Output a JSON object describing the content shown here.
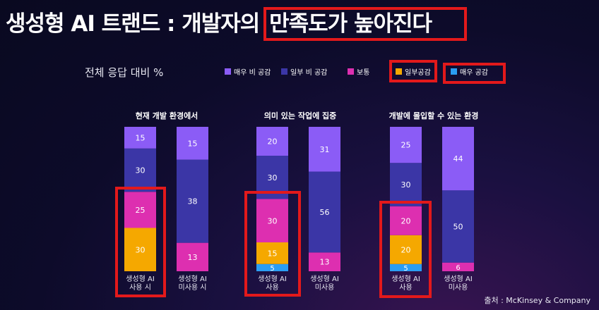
{
  "page": {
    "title_main": "생성형 AI 트랜드 : 개발자의 ",
    "title_highlight": "만족도가 높아진다",
    "axis_note": "전체 응답 대비 %",
    "source": "출처 : McKinsey & Company"
  },
  "colors": {
    "very_disagree": "#8b5cf6",
    "somewhat_disagree": "#3b36a6",
    "neutral": "#dd2fb0",
    "somewhat_agree": "#f5a800",
    "very_agree": "#2a9df4",
    "highlight": "#e3191b"
  },
  "legend": [
    {
      "key": "very_disagree",
      "label": "매우 비 공감"
    },
    {
      "key": "somewhat_disagree",
      "label": "일부 비 공감"
    },
    {
      "key": "neutral",
      "label": "보통"
    },
    {
      "key": "somewhat_agree",
      "label": "일부공감"
    },
    {
      "key": "very_agree",
      "label": "매우 공감"
    }
  ],
  "chart_data": [
    {
      "type": "bar",
      "stacked": true,
      "title": "현재 개발 환경에서",
      "categories": [
        "생성형 AI\n사용 시",
        "생성형 AI\n미사용 시"
      ],
      "series": [
        {
          "name": "매우 공감",
          "values": [
            0,
            0
          ]
        },
        {
          "name": "일부공감",
          "values": [
            30,
            0
          ]
        },
        {
          "name": "보통",
          "values": [
            25,
            13
          ]
        },
        {
          "name": "일부 비 공감",
          "values": [
            30,
            38
          ]
        },
        {
          "name": "매우 비 공감",
          "values": [
            15,
            15
          ]
        }
      ]
    },
    {
      "type": "bar",
      "stacked": true,
      "title": "의미 있는 작업에 집중",
      "categories": [
        "생성형 AI\n사용",
        "생성형 AI\n미사용"
      ],
      "series": [
        {
          "name": "매우 공감",
          "values": [
            5,
            0
          ]
        },
        {
          "name": "일부공감",
          "values": [
            15,
            0
          ]
        },
        {
          "name": "보통",
          "values": [
            30,
            13
          ]
        },
        {
          "name": "일부 비 공감",
          "values": [
            30,
            56
          ]
        },
        {
          "name": "매우 비 공감",
          "values": [
            20,
            31
          ]
        }
      ]
    },
    {
      "type": "bar",
      "stacked": true,
      "title": "개발에 몰입할 수 있는 환경",
      "categories": [
        "생성형 AI\n사용",
        "생성형 AI\n미사용"
      ],
      "series": [
        {
          "name": "매우 공감",
          "values": [
            5,
            0
          ]
        },
        {
          "name": "일부공감",
          "values": [
            20,
            0
          ]
        },
        {
          "name": "보통",
          "values": [
            20,
            6
          ]
        },
        {
          "name": "일부 비 공감",
          "values": [
            30,
            50
          ]
        },
        {
          "name": "매우 비 공감",
          "values": [
            25,
            44
          ]
        }
      ]
    }
  ]
}
